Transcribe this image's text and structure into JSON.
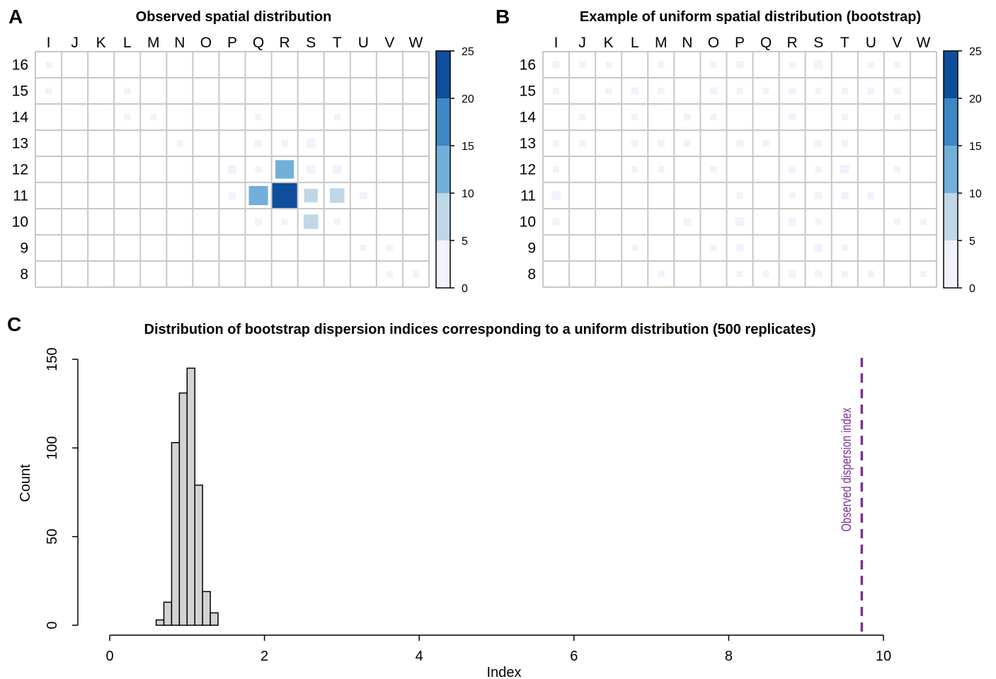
{
  "panels": {
    "a_letter": "A",
    "b_letter": "B",
    "c_letter": "C"
  },
  "chart_data": [
    {
      "type": "heatmap",
      "title": "Observed spatial distribution",
      "columns": [
        "I",
        "J",
        "K",
        "L",
        "M",
        "N",
        "O",
        "P",
        "Q",
        "R",
        "S",
        "T",
        "U",
        "V",
        "W"
      ],
      "rows": [
        "16",
        "15",
        "14",
        "13",
        "12",
        "11",
        "10",
        "9",
        "8"
      ],
      "colorbar": {
        "ticks": [
          0,
          5,
          10,
          15,
          20,
          25
        ],
        "colors": [
          "#f2f2fd",
          "#c0d7e7",
          "#72b0d9",
          "#3d88c5",
          "#0e4e9b"
        ]
      },
      "cells": [
        {
          "row": "16",
          "col": "I",
          "value": 1
        },
        {
          "row": "15",
          "col": "I",
          "value": 1
        },
        {
          "row": "15",
          "col": "L",
          "value": 1
        },
        {
          "row": "14",
          "col": "L",
          "value": 1
        },
        {
          "row": "14",
          "col": "M",
          "value": 1
        },
        {
          "row": "14",
          "col": "Q",
          "value": 1
        },
        {
          "row": "14",
          "col": "T",
          "value": 1
        },
        {
          "row": "13",
          "col": "N",
          "value": 1
        },
        {
          "row": "13",
          "col": "Q",
          "value": 2
        },
        {
          "row": "13",
          "col": "R",
          "value": 2
        },
        {
          "row": "13",
          "col": "S",
          "value": 3
        },
        {
          "row": "12",
          "col": "P",
          "value": 3
        },
        {
          "row": "12",
          "col": "Q",
          "value": 1
        },
        {
          "row": "12",
          "col": "R",
          "value": 13
        },
        {
          "row": "12",
          "col": "S",
          "value": 3
        },
        {
          "row": "12",
          "col": "T",
          "value": 3
        },
        {
          "row": "11",
          "col": "P",
          "value": 2
        },
        {
          "row": "11",
          "col": "Q",
          "value": 14
        },
        {
          "row": "11",
          "col": "R",
          "value": 24
        },
        {
          "row": "11",
          "col": "S",
          "value": 7
        },
        {
          "row": "11",
          "col": "T",
          "value": 8
        },
        {
          "row": "11",
          "col": "U",
          "value": 2
        },
        {
          "row": "10",
          "col": "Q",
          "value": 2
        },
        {
          "row": "10",
          "col": "R",
          "value": 1
        },
        {
          "row": "10",
          "col": "S",
          "value": 8
        },
        {
          "row": "10",
          "col": "T",
          "value": 1
        },
        {
          "row": "9",
          "col": "U",
          "value": 1
        },
        {
          "row": "9",
          "col": "V",
          "value": 1
        },
        {
          "row": "8",
          "col": "V",
          "value": 1
        },
        {
          "row": "8",
          "col": "W",
          "value": 1
        }
      ]
    },
    {
      "type": "heatmap",
      "title": "Example of uniform spatial distribution (bootstrap)",
      "columns": [
        "I",
        "J",
        "K",
        "L",
        "M",
        "N",
        "O",
        "P",
        "Q",
        "R",
        "S",
        "T",
        "U",
        "V",
        "W"
      ],
      "rows": [
        "16",
        "15",
        "14",
        "13",
        "12",
        "11",
        "10",
        "9",
        "8"
      ],
      "colorbar": {
        "ticks": [
          0,
          5,
          10,
          15,
          20,
          25
        ],
        "colors": [
          "#f2f2fd",
          "#c0d7e7",
          "#72b0d9",
          "#3d88c5",
          "#0e4e9b"
        ]
      },
      "cells": [
        {
          "row": "16",
          "col": "I",
          "value": 2
        },
        {
          "row": "16",
          "col": "J",
          "value": 1
        },
        {
          "row": "16",
          "col": "K",
          "value": 1
        },
        {
          "row": "16",
          "col": "M",
          "value": 1
        },
        {
          "row": "16",
          "col": "O",
          "value": 1
        },
        {
          "row": "16",
          "col": "P",
          "value": 2
        },
        {
          "row": "16",
          "col": "R",
          "value": 1
        },
        {
          "row": "16",
          "col": "S",
          "value": 3
        },
        {
          "row": "16",
          "col": "U",
          "value": 1
        },
        {
          "row": "16",
          "col": "V",
          "value": 1
        },
        {
          "row": "15",
          "col": "I",
          "value": 1
        },
        {
          "row": "15",
          "col": "K",
          "value": 1
        },
        {
          "row": "15",
          "col": "L",
          "value": 2
        },
        {
          "row": "15",
          "col": "M",
          "value": 1
        },
        {
          "row": "15",
          "col": "O",
          "value": 2
        },
        {
          "row": "15",
          "col": "P",
          "value": 1
        },
        {
          "row": "15",
          "col": "Q",
          "value": 1
        },
        {
          "row": "15",
          "col": "R",
          "value": 2
        },
        {
          "row": "15",
          "col": "S",
          "value": 1
        },
        {
          "row": "15",
          "col": "T",
          "value": 1
        },
        {
          "row": "15",
          "col": "U",
          "value": 2
        },
        {
          "row": "15",
          "col": "V",
          "value": 2
        },
        {
          "row": "14",
          "col": "J",
          "value": 1
        },
        {
          "row": "14",
          "col": "L",
          "value": 1
        },
        {
          "row": "14",
          "col": "N",
          "value": 2
        },
        {
          "row": "14",
          "col": "O",
          "value": 1
        },
        {
          "row": "14",
          "col": "R",
          "value": 2
        },
        {
          "row": "14",
          "col": "T",
          "value": 1
        },
        {
          "row": "14",
          "col": "V",
          "value": 1
        },
        {
          "row": "13",
          "col": "I",
          "value": 1
        },
        {
          "row": "13",
          "col": "J",
          "value": 1
        },
        {
          "row": "13",
          "col": "L",
          "value": 2
        },
        {
          "row": "13",
          "col": "M",
          "value": 2
        },
        {
          "row": "13",
          "col": "N",
          "value": 2
        },
        {
          "row": "13",
          "col": "P",
          "value": 2
        },
        {
          "row": "13",
          "col": "Q",
          "value": 1
        },
        {
          "row": "13",
          "col": "S",
          "value": 2
        },
        {
          "row": "13",
          "col": "T",
          "value": 2
        },
        {
          "row": "12",
          "col": "I",
          "value": 1
        },
        {
          "row": "12",
          "col": "L",
          "value": 1
        },
        {
          "row": "12",
          "col": "M",
          "value": 1
        },
        {
          "row": "12",
          "col": "O",
          "value": 1
        },
        {
          "row": "12",
          "col": "R",
          "value": 2
        },
        {
          "row": "12",
          "col": "S",
          "value": 1
        },
        {
          "row": "12",
          "col": "T",
          "value": 3
        },
        {
          "row": "12",
          "col": "V",
          "value": 1
        },
        {
          "row": "11",
          "col": "I",
          "value": 3
        },
        {
          "row": "11",
          "col": "P",
          "value": 1
        },
        {
          "row": "11",
          "col": "R",
          "value": 1
        },
        {
          "row": "11",
          "col": "S",
          "value": 2
        },
        {
          "row": "11",
          "col": "T",
          "value": 2
        },
        {
          "row": "11",
          "col": "U",
          "value": 2
        },
        {
          "row": "10",
          "col": "I",
          "value": 2
        },
        {
          "row": "10",
          "col": "N",
          "value": 2
        },
        {
          "row": "10",
          "col": "P",
          "value": 3
        },
        {
          "row": "10",
          "col": "R",
          "value": 2
        },
        {
          "row": "10",
          "col": "S",
          "value": 1
        },
        {
          "row": "10",
          "col": "V",
          "value": 1
        },
        {
          "row": "10",
          "col": "W",
          "value": 1
        },
        {
          "row": "9",
          "col": "L",
          "value": 1
        },
        {
          "row": "9",
          "col": "O",
          "value": 1
        },
        {
          "row": "9",
          "col": "P",
          "value": 2
        },
        {
          "row": "9",
          "col": "S",
          "value": 2
        },
        {
          "row": "9",
          "col": "T",
          "value": 1
        },
        {
          "row": "8",
          "col": "M",
          "value": 2
        },
        {
          "row": "8",
          "col": "P",
          "value": 1
        },
        {
          "row": "8",
          "col": "Q",
          "value": 1
        },
        {
          "row": "8",
          "col": "R",
          "value": 2
        },
        {
          "row": "8",
          "col": "S",
          "value": 2
        },
        {
          "row": "8",
          "col": "T",
          "value": 1
        },
        {
          "row": "8",
          "col": "U",
          "value": 1
        },
        {
          "row": "8",
          "col": "W",
          "value": 1
        }
      ]
    },
    {
      "type": "bar",
      "subtype": "histogram",
      "title": "Distribution of bootstrap dispersion indices corresponding to a uniform distribution (500 replicates)",
      "xlabel": "Index",
      "ylabel": "Count",
      "xlim": [
        0,
        10
      ],
      "ylim": [
        0,
        150
      ],
      "xticks": [
        0,
        2,
        4,
        6,
        8,
        10
      ],
      "yticks": [
        0,
        50,
        100,
        150
      ],
      "bin_edges": [
        0.6,
        0.7,
        0.8,
        0.9,
        1.0,
        1.1,
        1.2,
        1.3,
        1.4
      ],
      "counts": [
        3,
        13,
        103,
        131,
        145,
        79,
        19,
        7
      ],
      "observed_line": {
        "x": 9.72,
        "label": "Observed dispersion index",
        "color": "#7b3294"
      }
    }
  ]
}
